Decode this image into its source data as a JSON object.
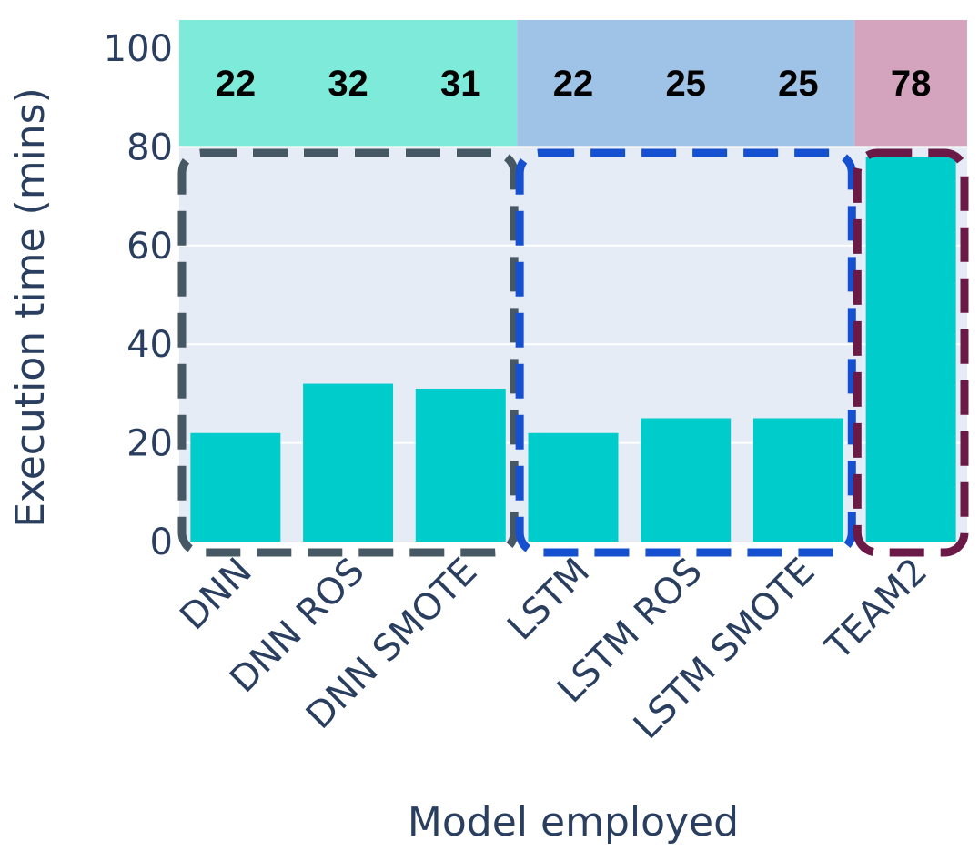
{
  "chart_data": {
    "type": "bar",
    "xlabel": "Model employed",
    "ylabel": "Execution time (mins)",
    "ylim": [
      0,
      100
    ],
    "yticks": [
      0,
      20,
      40,
      60,
      80,
      100
    ],
    "grid": true,
    "categories": [
      "DNN",
      "DNN ROS",
      "DNN SMOTE",
      "LSTM",
      "LSTM ROS",
      "LSTM SMOTE",
      "TEAM2"
    ],
    "values": [
      22,
      32,
      31,
      22,
      25,
      25,
      78
    ],
    "value_labels": [
      "22",
      "32",
      "31",
      "22",
      "25",
      "25",
      "78"
    ],
    "bar_color": "#00cccc",
    "plot_background": "#e5ecf6",
    "groups": [
      {
        "members": [
          0,
          1,
          2
        ],
        "band_color": "#7eead9",
        "outline_color": "#465863"
      },
      {
        "members": [
          3,
          4,
          5
        ],
        "band_color": "#9fc3e6",
        "outline_color": "#1550d0"
      },
      {
        "members": [
          6
        ],
        "band_color": "#d4a3bd",
        "outline_color": "#6b1a48"
      }
    ]
  }
}
